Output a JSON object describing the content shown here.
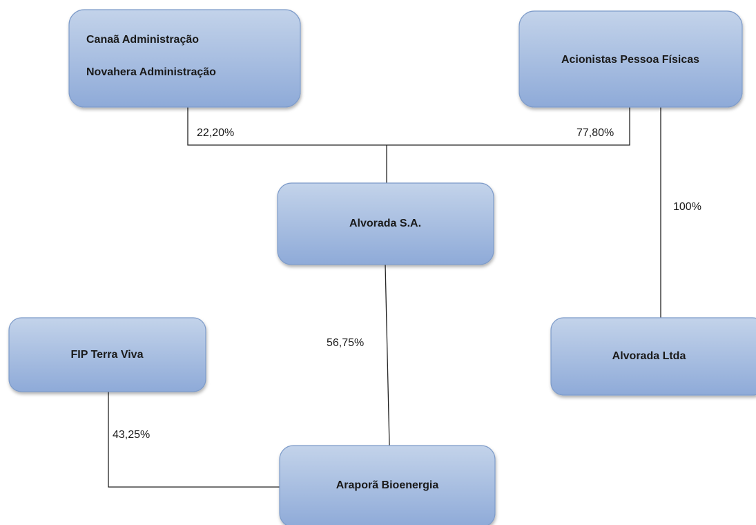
{
  "nodes": [
    {
      "lines": [
        "Canaã Administração",
        "Novahera Administração"
      ]
    },
    {
      "label": "Acionistas Pessoa Físicas"
    },
    {
      "label": "Alvorada S.A."
    },
    {
      "label": "FIP Terra Viva"
    },
    {
      "label": "Alvorada Ltda"
    },
    {
      "label": "Araporã Bioenergia"
    }
  ],
  "edges": [
    {
      "label": "22,20%"
    },
    {
      "label": "77,80%"
    },
    {
      "label": "100%"
    },
    {
      "label": "56,75%"
    },
    {
      "label": "43,25%"
    }
  ]
}
